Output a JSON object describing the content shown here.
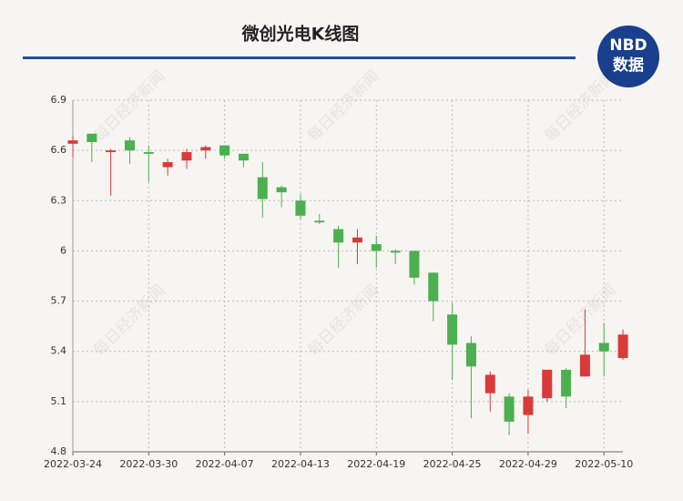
{
  "chart_data": {
    "type": "candlestick",
    "title": "微创光电K线图",
    "logo": {
      "top": "NBD",
      "bottom": "数据"
    },
    "watermark": "每日经济新闻",
    "categories": [
      "2022-03-24",
      null,
      null,
      null,
      "2022-03-30",
      null,
      null,
      null,
      "2022-04-07",
      null,
      null,
      null,
      "2022-04-13",
      null,
      null,
      null,
      "2022-04-19",
      null,
      null,
      null,
      "2022-04-25",
      null,
      null,
      null,
      "2022-04-29",
      null,
      null,
      null,
      "2022-05-10",
      null
    ],
    "open": [
      6.64,
      6.7,
      6.59,
      6.66,
      6.59,
      6.5,
      6.54,
      6.6,
      6.63,
      6.58,
      6.44,
      6.38,
      6.3,
      6.18,
      6.13,
      6.05,
      6.04,
      6.0,
      6.0,
      5.87,
      5.62,
      5.45,
      5.15,
      5.13,
      5.02,
      5.12,
      5.29,
      5.25,
      5.45,
      5.36
    ],
    "high": [
      6.69,
      6.7,
      6.61,
      6.68,
      6.63,
      6.55,
      6.61,
      6.63,
      6.63,
      6.58,
      6.53,
      6.39,
      6.34,
      6.22,
      6.15,
      6.13,
      6.09,
      6.01,
      6.0,
      5.87,
      5.69,
      5.49,
      5.28,
      5.15,
      5.17,
      5.29,
      5.3,
      5.65,
      5.57,
      5.53
    ],
    "low": [
      6.56,
      6.53,
      6.33,
      6.52,
      6.41,
      6.45,
      6.49,
      6.55,
      6.55,
      6.5,
      6.2,
      6.26,
      6.19,
      6.16,
      5.9,
      5.92,
      5.9,
      5.92,
      5.8,
      5.58,
      5.23,
      5.0,
      5.04,
      4.9,
      4.91,
      5.1,
      5.06,
      5.25,
      5.25,
      5.35
    ],
    "close": [
      6.66,
      6.65,
      6.6,
      6.6,
      6.58,
      6.53,
      6.59,
      6.62,
      6.57,
      6.54,
      6.31,
      6.35,
      6.21,
      6.17,
      6.05,
      6.08,
      6.0,
      5.99,
      5.84,
      5.7,
      5.44,
      5.31,
      5.26,
      4.98,
      5.13,
      5.29,
      5.13,
      5.38,
      5.4,
      5.5
    ],
    "up_color": "#d93a3a",
    "down_color": "#4caf50",
    "ylim": [
      4.8,
      6.9
    ],
    "yticks": [
      4.8,
      5.1,
      5.4,
      5.7,
      6,
      6.3,
      6.6,
      6.9
    ],
    "grid": true
  }
}
